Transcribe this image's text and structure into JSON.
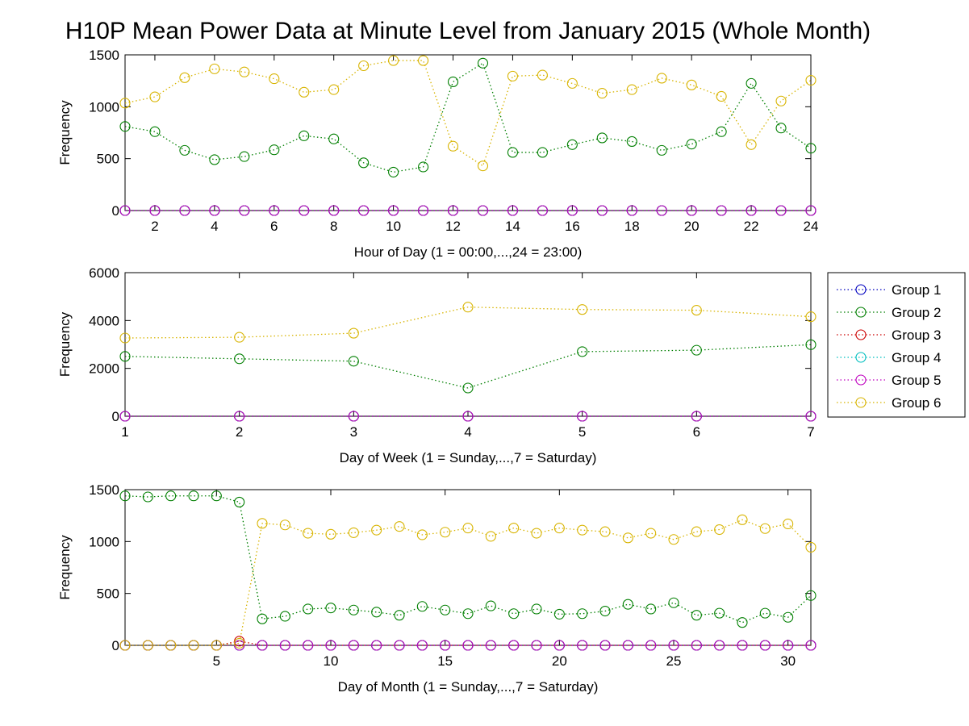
{
  "title": "H10P Mean Power Data at Minute Level from January 2015 (Whole Month)",
  "colors": {
    "Group 1": "#0000bf",
    "Group 2": "#007f00",
    "Group 3": "#cc0000",
    "Group 4": "#00bfbf",
    "Group 5": "#bf00bf",
    "Group 6": "#d8b400"
  },
  "legend": {
    "placement": "right of middle panel",
    "entries": [
      "Group 1",
      "Group 2",
      "Group 3",
      "Group 4",
      "Group 5",
      "Group 6"
    ]
  },
  "chart_data": [
    {
      "type": "line",
      "marker": "circle",
      "line_style": "dotted",
      "xlabel": "Hour of Day (1 = 00:00,...,24 = 23:00)",
      "ylabel": "Frequency",
      "xlim": [
        1,
        24
      ],
      "ylim": [
        0,
        1500
      ],
      "xticks": [
        2,
        4,
        6,
        8,
        10,
        12,
        14,
        16,
        18,
        20,
        22,
        24
      ],
      "yticks": [
        0,
        500,
        1000,
        1500
      ],
      "grid": false,
      "x": [
        1,
        2,
        3,
        4,
        5,
        6,
        7,
        8,
        9,
        10,
        11,
        12,
        13,
        14,
        15,
        16,
        17,
        18,
        19,
        20,
        21,
        22,
        23,
        24
      ],
      "series": [
        {
          "name": "Group 1",
          "values": [
            0,
            0,
            0,
            0,
            0,
            0,
            0,
            0,
            0,
            0,
            0,
            0,
            0,
            0,
            0,
            0,
            0,
            0,
            0,
            0,
            0,
            0,
            0,
            0
          ]
        },
        {
          "name": "Group 2",
          "values": [
            810,
            760,
            580,
            490,
            520,
            585,
            720,
            690,
            460,
            370,
            420,
            1240,
            1420,
            560,
            560,
            635,
            700,
            665,
            580,
            640,
            760,
            1225,
            795,
            600
          ]
        },
        {
          "name": "Group 3",
          "values": [
            0,
            0,
            0,
            0,
            0,
            0,
            0,
            0,
            0,
            0,
            0,
            0,
            0,
            0,
            0,
            0,
            0,
            0,
            0,
            0,
            0,
            0,
            0,
            0
          ]
        },
        {
          "name": "Group 4",
          "values": [
            0,
            0,
            0,
            0,
            0,
            0,
            0,
            0,
            0,
            0,
            0,
            0,
            0,
            0,
            0,
            0,
            0,
            0,
            0,
            0,
            0,
            0,
            0,
            0
          ]
        },
        {
          "name": "Group 5",
          "values": [
            0,
            0,
            0,
            0,
            0,
            0,
            0,
            0,
            0,
            0,
            0,
            0,
            0,
            0,
            0,
            0,
            0,
            0,
            0,
            0,
            0,
            0,
            0,
            0
          ]
        },
        {
          "name": "Group 6",
          "values": [
            1035,
            1095,
            1280,
            1365,
            1335,
            1270,
            1140,
            1165,
            1395,
            1445,
            1445,
            620,
            430,
            1295,
            1305,
            1225,
            1130,
            1165,
            1275,
            1210,
            1100,
            635,
            1055,
            1255
          ]
        }
      ]
    },
    {
      "type": "line",
      "marker": "circle",
      "line_style": "dotted",
      "xlabel": "Day of Week (1 = Sunday,...,7 = Saturday)",
      "ylabel": "Frequency",
      "xlim": [
        1,
        7
      ],
      "ylim": [
        0,
        6000
      ],
      "xticks": [
        1,
        2,
        3,
        4,
        5,
        6,
        7
      ],
      "yticks": [
        0,
        2000,
        4000,
        6000
      ],
      "grid": false,
      "x": [
        1,
        2,
        3,
        4,
        5,
        6,
        7
      ],
      "series": [
        {
          "name": "Group 1",
          "values": [
            0,
            0,
            0,
            0,
            0,
            0,
            0
          ]
        },
        {
          "name": "Group 2",
          "values": [
            2500,
            2400,
            2300,
            1180,
            2700,
            2760,
            2990
          ]
        },
        {
          "name": "Group 3",
          "values": [
            0,
            0,
            0,
            0,
            0,
            0,
            0
          ]
        },
        {
          "name": "Group 4",
          "values": [
            0,
            0,
            0,
            0,
            0,
            0,
            0
          ]
        },
        {
          "name": "Group 5",
          "values": [
            0,
            0,
            0,
            0,
            0,
            0,
            0
          ]
        },
        {
          "name": "Group 6",
          "values": [
            3270,
            3300,
            3470,
            4560,
            4460,
            4430,
            4160
          ]
        }
      ]
    },
    {
      "type": "line",
      "marker": "circle",
      "line_style": "dotted",
      "xlabel": "Day of Month (1 = Sunday,...,7 = Saturday)",
      "ylabel": "Frequency",
      "xlim": [
        1,
        31
      ],
      "ylim": [
        0,
        1500
      ],
      "xticks": [
        5,
        10,
        15,
        20,
        25,
        30
      ],
      "yticks": [
        0,
        500,
        1000,
        1500
      ],
      "grid": false,
      "x": [
        1,
        2,
        3,
        4,
        5,
        6,
        7,
        8,
        9,
        10,
        11,
        12,
        13,
        14,
        15,
        16,
        17,
        18,
        19,
        20,
        21,
        22,
        23,
        24,
        25,
        26,
        27,
        28,
        29,
        30,
        31
      ],
      "series": [
        {
          "name": "Group 1",
          "values": [
            0,
            0,
            0,
            0,
            0,
            0,
            0,
            0,
            0,
            0,
            0,
            0,
            0,
            0,
            0,
            0,
            0,
            0,
            0,
            0,
            0,
            0,
            0,
            0,
            0,
            0,
            0,
            0,
            0,
            0,
            0
          ]
        },
        {
          "name": "Group 2",
          "values": [
            1440,
            1430,
            1440,
            1440,
            1440,
            1380,
            255,
            280,
            350,
            360,
            340,
            320,
            290,
            375,
            340,
            305,
            380,
            305,
            350,
            300,
            305,
            330,
            395,
            350,
            410,
            290,
            310,
            220,
            310,
            270,
            480
          ]
        },
        {
          "name": "Group 3",
          "values": [
            0,
            0,
            0,
            0,
            0,
            40,
            0,
            0,
            0,
            0,
            0,
            0,
            0,
            0,
            0,
            0,
            0,
            0,
            0,
            0,
            0,
            0,
            0,
            0,
            0,
            0,
            0,
            0,
            0,
            0,
            0
          ]
        },
        {
          "name": "Group 4",
          "values": [
            0,
            0,
            0,
            0,
            0,
            0,
            0,
            0,
            0,
            0,
            0,
            0,
            0,
            0,
            0,
            0,
            0,
            0,
            0,
            0,
            0,
            0,
            0,
            0,
            0,
            0,
            0,
            0,
            0,
            0,
            0
          ]
        },
        {
          "name": "Group 5",
          "values": [
            0,
            0,
            0,
            0,
            0,
            0,
            0,
            0,
            0,
            0,
            0,
            0,
            0,
            0,
            0,
            0,
            0,
            0,
            0,
            0,
            0,
            0,
            0,
            0,
            0,
            0,
            0,
            0,
            0,
            0,
            0
          ]
        },
        {
          "name": "Group 6",
          "values": [
            0,
            0,
            0,
            0,
            0,
            20,
            1175,
            1160,
            1080,
            1070,
            1085,
            1110,
            1145,
            1065,
            1090,
            1130,
            1050,
            1130,
            1080,
            1130,
            1110,
            1095,
            1035,
            1080,
            1020,
            1095,
            1115,
            1210,
            1125,
            1170,
            945
          ]
        }
      ]
    }
  ]
}
